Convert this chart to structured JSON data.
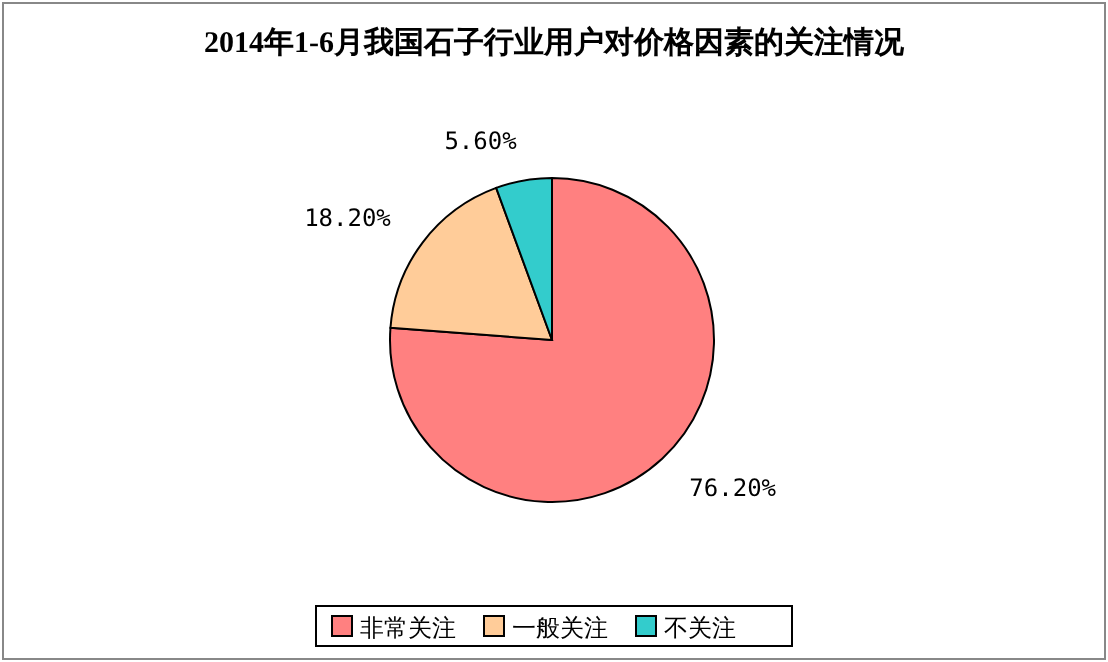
{
  "chart_data": {
    "type": "pie",
    "title": "2014年1-6月我国石子行业用户对价格因素的关注情况",
    "categories": [
      "非常关注",
      "一般关注",
      "不关注"
    ],
    "values": [
      76.2,
      18.2,
      5.6
    ],
    "value_labels": [
      "76.20%",
      "18.20%",
      "5.60%"
    ],
    "colors": [
      "#ff8080",
      "#ffcc99",
      "#33cccc"
    ],
    "legend": "bottom"
  }
}
